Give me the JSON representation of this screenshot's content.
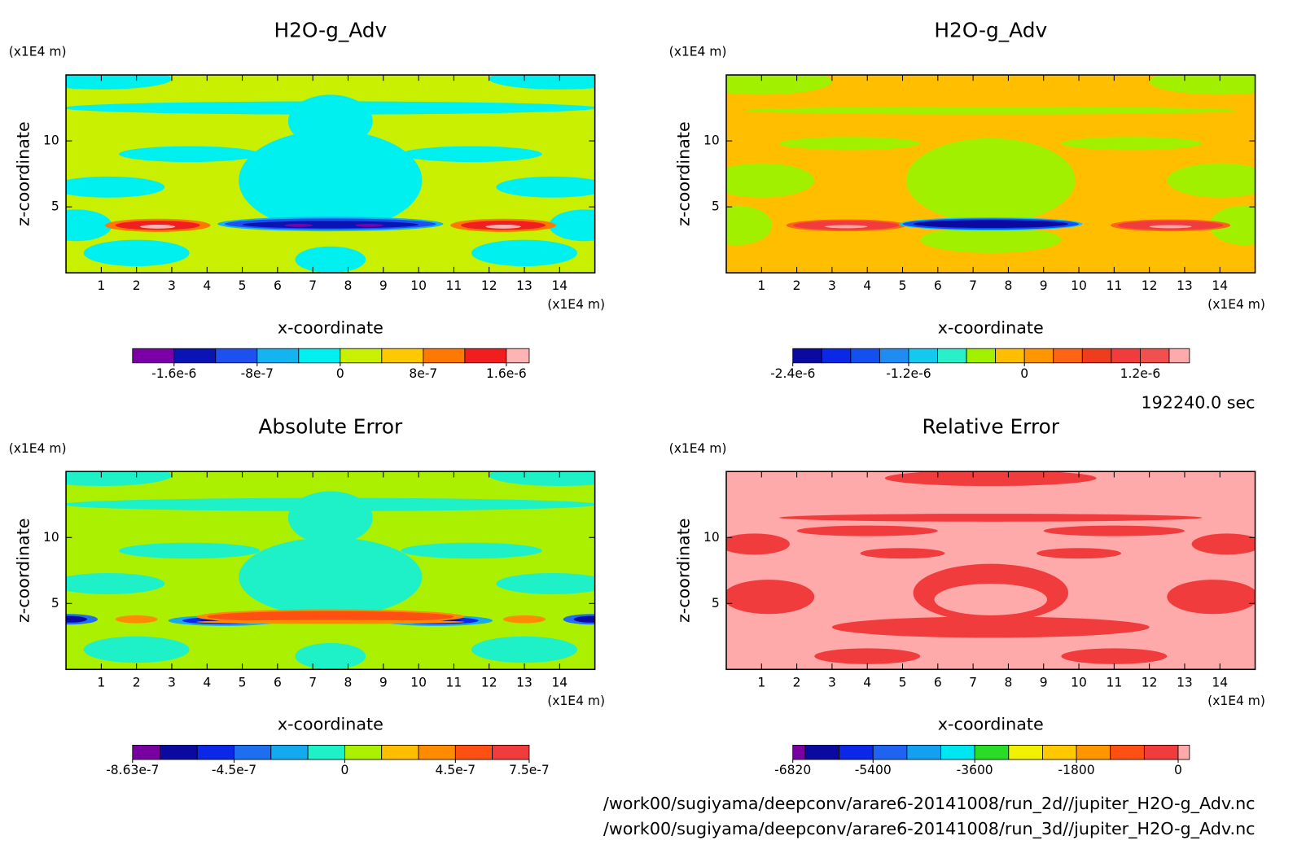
{
  "chart_data": [
    {
      "type": "contour",
      "title": "H2O-g_Adv",
      "xlabel": "x-coordinate",
      "ylabel": "z-coordinate",
      "xunit": "(x1E4 m)",
      "yunit": "(x1E4 m)",
      "xlim": [
        0,
        15
      ],
      "ylim": [
        0,
        15
      ],
      "xticks": [
        1,
        2,
        3,
        4,
        5,
        6,
        7,
        8,
        9,
        10,
        11,
        12,
        13,
        14
      ],
      "yticks": [
        5,
        10
      ],
      "colorbar": {
        "levels": [
          -2e-06,
          -1.6e-06,
          -1.2e-06,
          -8e-07,
          -4e-07,
          0,
          4e-07,
          8e-07,
          1.2e-06,
          1.6e-06,
          1.82e-06
        ],
        "colors": [
          "#7b00a8",
          "#0a14b4",
          "#1e50f0",
          "#14b4f0",
          "#00f0f0",
          "#c8f000",
          "#ffc800",
          "#ff7800",
          "#f01e1e",
          "#ffb4b4"
        ],
        "ticks": [
          {
            "value": -1.6e-06,
            "label": "-1.6e-6"
          },
          -8e-07,
          0,
          8e-07,
          {
            "value": 1.6e-06,
            "label": "1.6e-6"
          }
        ]
      }
    },
    {
      "type": "contour",
      "title": "H2O-g_Adv",
      "xlabel": "x-coordinate",
      "ylabel": "z-coordinate",
      "xunit": "(x1E4 m)",
      "yunit": "(x1E4 m)",
      "xlim": [
        0,
        15
      ],
      "ylim": [
        0,
        15
      ],
      "xticks": [
        1,
        2,
        3,
        4,
        5,
        6,
        7,
        8,
        9,
        10,
        11,
        12,
        13,
        14
      ],
      "yticks": [
        5,
        10
      ],
      "colorbar": {
        "levels": [
          -2.4e-06,
          -2.1e-06,
          -1.8e-06,
          -1.5e-06,
          -1.2e-06,
          -9e-07,
          -6e-07,
          -3e-07,
          0,
          3e-07,
          6e-07,
          9e-07,
          1.2e-06,
          1.5e-06,
          1.71e-06
        ],
        "colors": [
          "#0a0aa0",
          "#0a28e6",
          "#1450f0",
          "#1e8cf0",
          "#14c8f0",
          "#28f0c8",
          "#a0f000",
          "#ffbe00",
          "#ff9600",
          "#ff6414",
          "#f03c1e",
          "#f03c3c",
          "#f05050",
          "#ffaaaa"
        ],
        "ticks": [
          {
            "value": -2.4e-06,
            "label": "-2.4e-6"
          },
          {
            "value": -1.2e-06,
            "label": "-1.2e-6"
          },
          0,
          {
            "value": 1.2e-06,
            "label": "1.2e-6"
          }
        ]
      }
    },
    {
      "type": "contour",
      "title": "Absolute Error",
      "xlabel": "x-coordinate",
      "ylabel": "z-coordinate",
      "xunit": "(x1E4 m)",
      "yunit": "(x1E4 m)",
      "xlim": [
        0,
        15
      ],
      "ylim": [
        0,
        15
      ],
      "xticks": [
        1,
        2,
        3,
        4,
        5,
        6,
        7,
        8,
        9,
        10,
        11,
        12,
        13,
        14
      ],
      "yticks": [
        5,
        10
      ],
      "colorbar": {
        "levels": [
          -8.63e-07,
          -7.5e-07,
          -6e-07,
          -4.5e-07,
          -3e-07,
          -1.5e-07,
          0,
          1.5e-07,
          3e-07,
          4.5e-07,
          6e-07,
          7.5e-07
        ],
        "colors": [
          "#7800a0",
          "#0a0aa0",
          "#0a28e6",
          "#1e6ef0",
          "#14aaf0",
          "#1ef0c8",
          "#aaf000",
          "#ffbe00",
          "#ff8c00",
          "#ff5014",
          "#f03c3c"
        ],
        "ticks": [
          -8.63e-07,
          -4.5e-07,
          0,
          4.5e-07,
          7.5e-07
        ]
      }
    },
    {
      "type": "contour",
      "title": "Relative Error",
      "xlabel": "x-coordinate",
      "ylabel": "z-coordinate",
      "xunit": "(x1E4 m)",
      "yunit": "(x1E4 m)",
      "xlim": [
        0,
        15
      ],
      "ylim": [
        0,
        15
      ],
      "xticks": [
        1,
        2,
        3,
        4,
        5,
        6,
        7,
        8,
        9,
        10,
        11,
        12,
        13,
        14
      ],
      "yticks": [
        5,
        10
      ],
      "colorbar": {
        "levels": [
          -6820,
          -6600,
          -6000,
          -5400,
          -4800,
          -4200,
          -3600,
          -3000,
          -2400,
          -1800,
          -1200,
          -600,
          0,
          200
        ],
        "colors": [
          "#7800a0",
          "#0a0aa0",
          "#0a28e6",
          "#1e64f0",
          "#14a0f0",
          "#00e6f0",
          "#28dc28",
          "#f0f000",
          "#ffc800",
          "#ff9600",
          "#ff5014",
          "#f03c3c",
          "#ffaaaa"
        ],
        "ticks": [
          -6820,
          -5400,
          -3600,
          -1800,
          0
        ]
      }
    }
  ],
  "time": "192240.0 sec",
  "files": [
    "/work00/sugiyama/deepconv/arare6-20141008/run_2d//jupiter_H2O-g_Adv.nc",
    "/work00/sugiyama/deepconv/arare6-20141008/run_3d//jupiter_H2O-g_Adv.nc"
  ]
}
